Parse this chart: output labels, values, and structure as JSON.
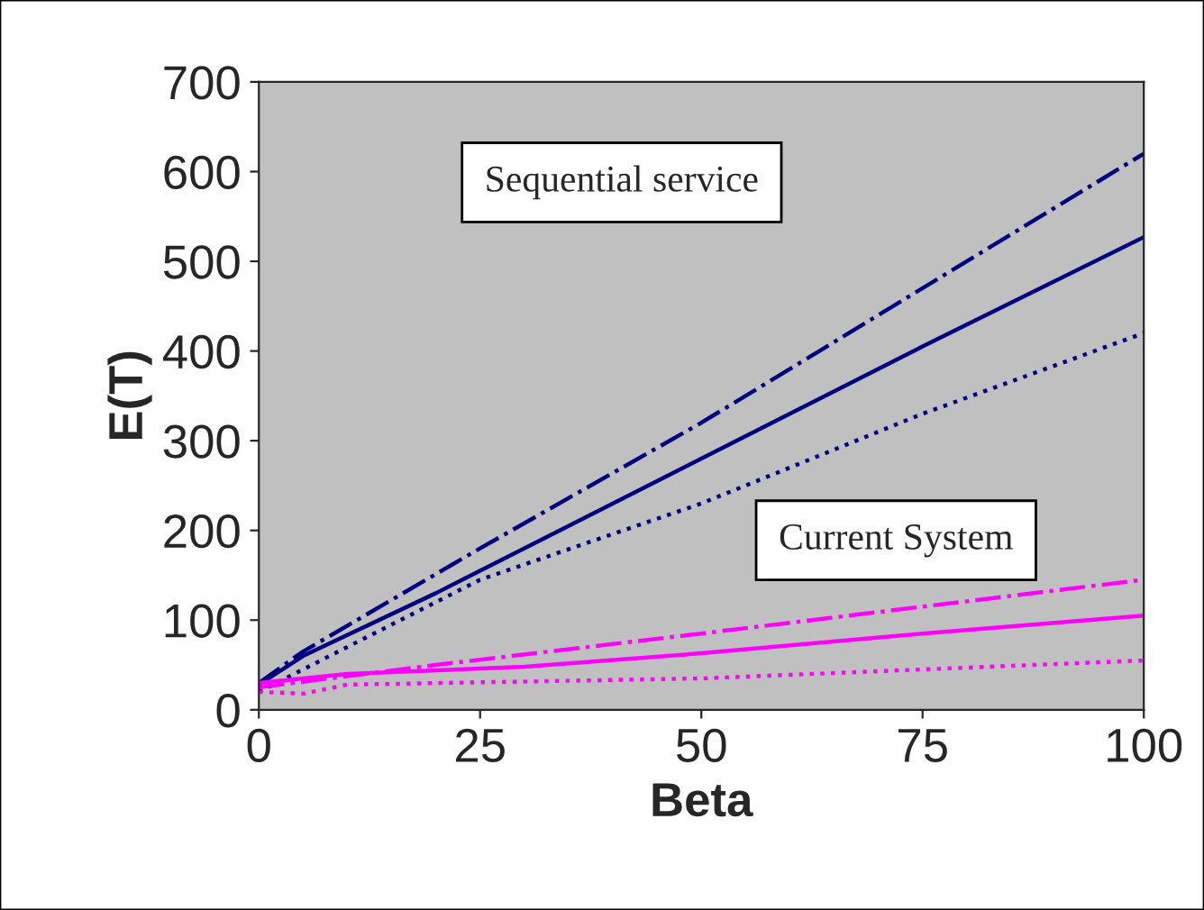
{
  "chart_data": {
    "type": "line",
    "xlabel": "Beta",
    "ylabel": "E(T)",
    "xlim": [
      0,
      100
    ],
    "ylim": [
      0,
      700
    ],
    "xticks": [
      0,
      25,
      50,
      75,
      100
    ],
    "yticks": [
      0,
      100,
      200,
      300,
      400,
      500,
      600,
      700
    ],
    "grid": false,
    "legend": false,
    "marker": "none",
    "annotations": [
      "Sequential service",
      "Current System"
    ],
    "series": [
      {
        "color": "#000080",
        "line_style": "dashdot",
        "x": [
          0,
          5,
          25,
          50,
          75,
          100
        ],
        "values": [
          30,
          65,
          180,
          320,
          470,
          620
        ]
      },
      {
        "color": "#000080",
        "line_style": "solid",
        "x": [
          0,
          5,
          20,
          35,
          50,
          75,
          100
        ],
        "values": [
          28,
          60,
          130,
          205,
          280,
          405,
          527
        ]
      },
      {
        "color": "#000080",
        "line_style": "dotted",
        "x": [
          0,
          5,
          25,
          50,
          75,
          100
        ],
        "values": [
          20,
          45,
          145,
          230,
          330,
          420
        ]
      },
      {
        "color": "#ff00ff",
        "line_style": "dashdot",
        "x": [
          0,
          20,
          50,
          75,
          100
        ],
        "values": [
          25,
          50,
          85,
          115,
          145
        ]
      },
      {
        "color": "#ff00ff",
        "line_style": "solid",
        "x": [
          0,
          10,
          30,
          50,
          75,
          100
        ],
        "values": [
          30,
          40,
          48,
          63,
          85,
          105
        ]
      },
      {
        "color": "#ff00ff",
        "line_style": "dotted",
        "x": [
          0,
          5,
          10,
          50,
          75,
          100
        ],
        "values": [
          20,
          18,
          28,
          35,
          45,
          55
        ]
      }
    ]
  }
}
